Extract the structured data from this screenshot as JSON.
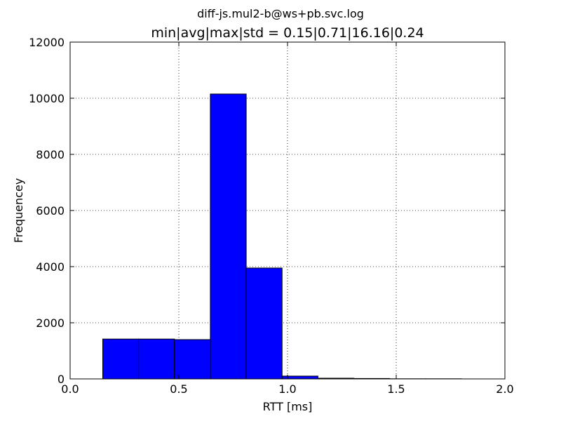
{
  "figure": {
    "suptitle": "diff-js.mul2-b@ws+pb.svc.log",
    "title": "min|avg|max|std = 0.15|0.71|16.16|0.24"
  },
  "chart_data": {
    "type": "bar",
    "title": "min|avg|max|std = 0.15|0.71|16.16|0.24",
    "xlabel": "RTT [ms]",
    "ylabel": "Frequencey",
    "xlim": [
      0.0,
      2.0
    ],
    "ylim": [
      0,
      12000
    ],
    "xticks": [
      "0.0",
      "0.5",
      "1.0",
      "1.5",
      "2.0"
    ],
    "yticks": [
      "0",
      "2000",
      "4000",
      "6000",
      "8000",
      "10000",
      "12000"
    ],
    "grid": true,
    "bar_color": "#0000ff",
    "bins": [
      {
        "x0": 0.15,
        "x1": 0.315,
        "value": 1420
      },
      {
        "x0": 0.315,
        "x1": 0.48,
        "value": 1420
      },
      {
        "x0": 0.48,
        "x1": 0.645,
        "value": 1400
      },
      {
        "x0": 0.645,
        "x1": 0.81,
        "value": 10150
      },
      {
        "x0": 0.81,
        "x1": 0.975,
        "value": 3950
      },
      {
        "x0": 0.975,
        "x1": 1.14,
        "value": 100
      },
      {
        "x0": 1.14,
        "x1": 1.305,
        "value": 25
      },
      {
        "x0": 1.305,
        "x1": 1.47,
        "value": 15
      },
      {
        "x0": 1.47,
        "x1": 1.635,
        "value": 5
      },
      {
        "x0": 1.635,
        "x1": 1.8,
        "value": 5
      }
    ]
  }
}
